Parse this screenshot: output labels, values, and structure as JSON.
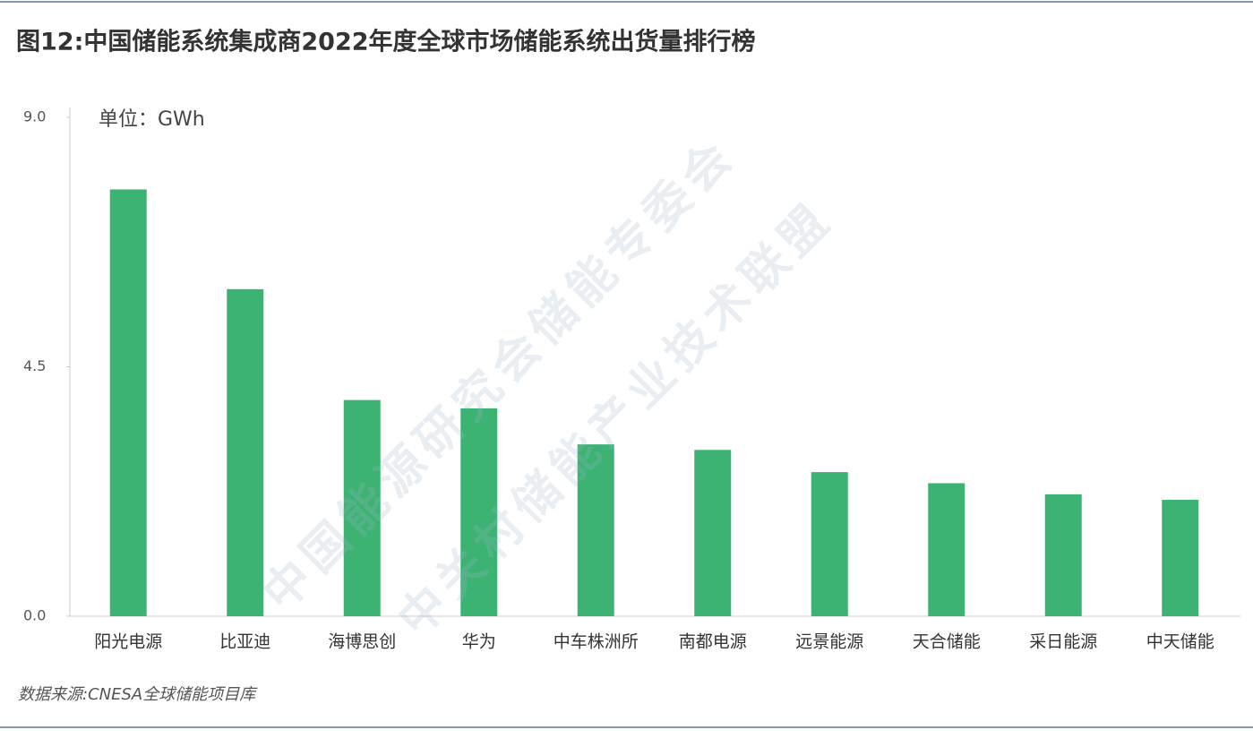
{
  "chart_data": {
    "type": "bar",
    "title": "图12:中国储能系统集成商2022年度全球市场储能系统出货量排行榜",
    "unit_label": "单位：GWh",
    "source": "数据来源:CNESA全球储能项目库",
    "watermark": [
      "中国能源研究会储能专委会",
      "中关村储能产业技术联盟"
    ],
    "categories": [
      "阳光电源",
      "比亚迪",
      "海博思创",
      "华为",
      "中车株洲所",
      "南都电源",
      "远景能源",
      "天合储能",
      "采日能源",
      "中天储能"
    ],
    "values": [
      7.7,
      5.9,
      3.9,
      3.75,
      3.1,
      3.0,
      2.6,
      2.4,
      2.2,
      2.1
    ],
    "color": "#3db373",
    "ylim": [
      0,
      9
    ],
    "yticks": [
      {
        "value": 0,
        "label": "0.0"
      },
      4.5,
      {
        "value": 9,
        "label": "9.0"
      }
    ],
    "grid": false
  }
}
